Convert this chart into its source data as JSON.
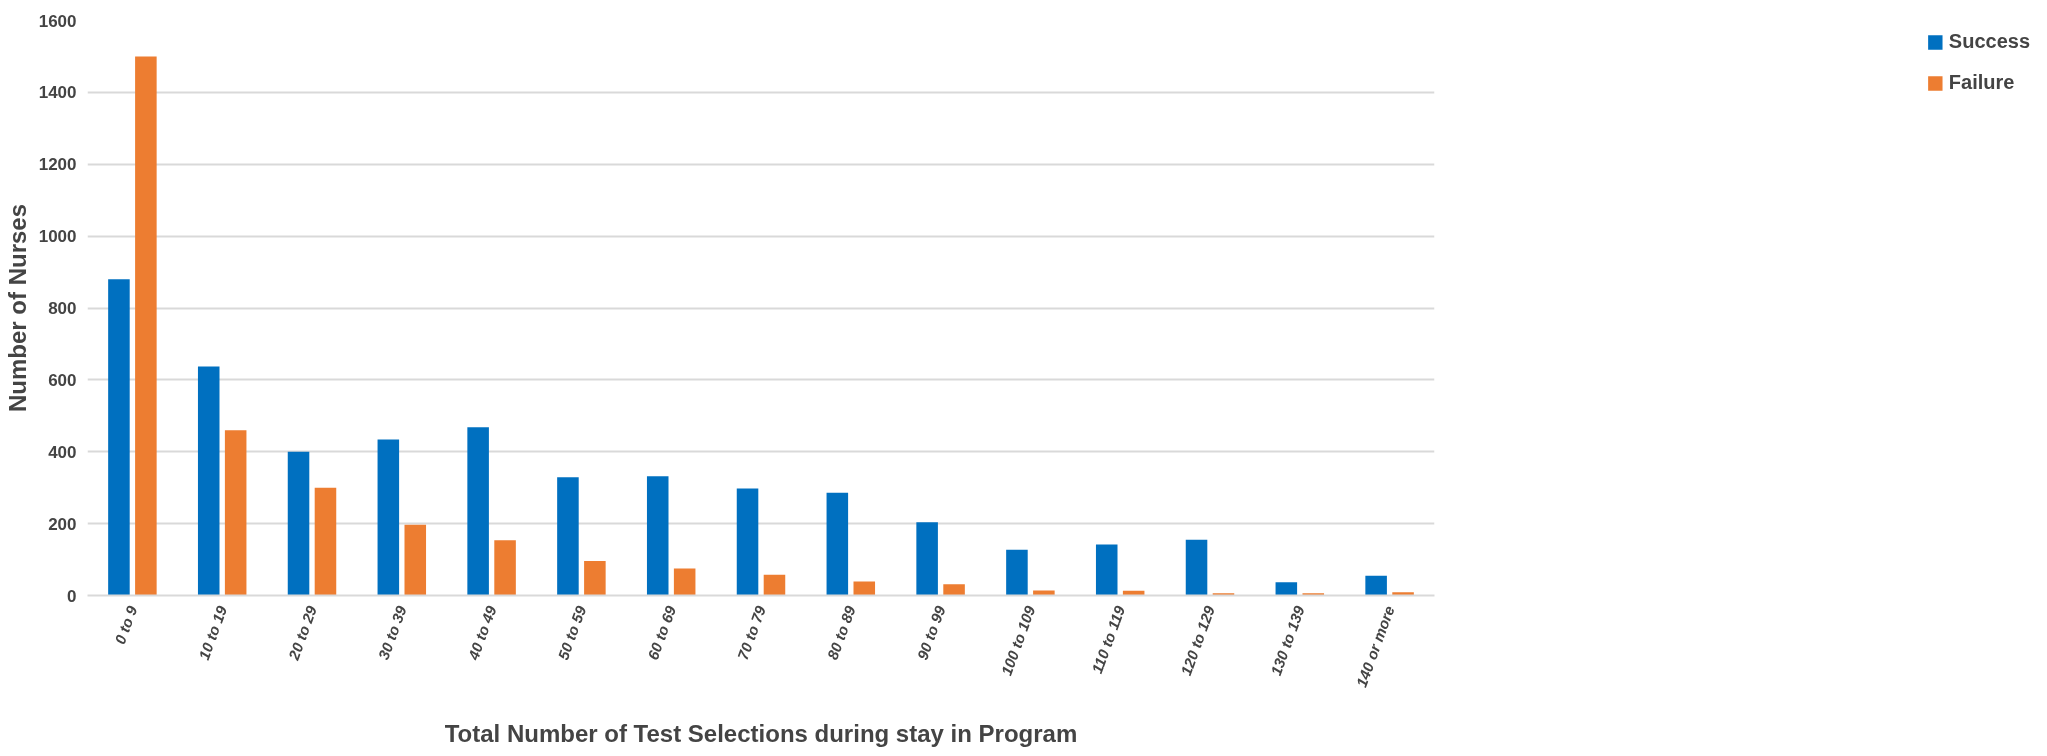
{
  "chart_data": {
    "type": "bar",
    "xlabel": "Total Number of Test Selections during stay in Program",
    "ylabel": "Number of Nurses",
    "categories": [
      "0 to 9",
      "10 to 19",
      "20 to 29",
      "30 to 39",
      "40 to 49",
      "50 to 59",
      "60 to 69",
      "70 to 79",
      "80 to 89",
      "90 to 99",
      "100 to 109",
      "110 to 119",
      "120 to 129",
      "130 to 139",
      "140 or more"
    ],
    "series": [
      {
        "name": "Success",
        "color": "#0070c0",
        "values": [
          880,
          637,
          400,
          434,
          468,
          329,
          332,
          298,
          286,
          204,
          127,
          142,
          155,
          37,
          55
        ]
      },
      {
        "name": "Failure",
        "color": "#ed7d31",
        "values": [
          1500,
          460,
          300,
          197,
          154,
          96,
          75,
          58,
          39,
          31,
          14,
          13,
          6,
          6,
          9
        ]
      }
    ],
    "ylim": [
      0,
      1600
    ],
    "yticks": [
      0,
      200,
      400,
      600,
      800,
      1000,
      1200,
      1400,
      1600
    ],
    "grid": "y",
    "legend": "right"
  }
}
